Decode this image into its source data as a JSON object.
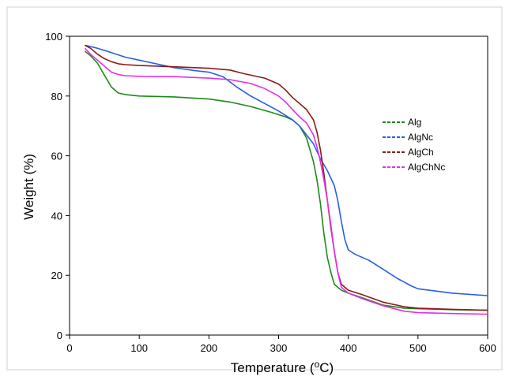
{
  "chart_data": {
    "type": "line",
    "title": "",
    "xlabel": "Temperature (",
    "xlabel_sup": "o",
    "xlabel_end": "C)",
    "ylabel": "Weight (%)",
    "xlim": [
      0,
      600
    ],
    "ylim": [
      0,
      100
    ],
    "xticks": [
      0,
      100,
      200,
      300,
      400,
      500,
      600
    ],
    "yticks": [
      0,
      20,
      40,
      60,
      80,
      100
    ],
    "grid": false,
    "legend_position": "right",
    "series": [
      {
        "name": "Alg",
        "color": "#1a8c1a",
        "x": [
          22,
          30,
          40,
          50,
          60,
          70,
          80,
          100,
          150,
          200,
          230,
          260,
          290,
          310,
          320,
          330,
          340,
          350,
          355,
          360,
          365,
          370,
          375,
          380,
          390,
          400,
          420,
          450,
          480,
          500,
          550,
          600
        ],
        "y": [
          95,
          93.5,
          91,
          87,
          83,
          81,
          80.5,
          80,
          79.7,
          79,
          78,
          76.5,
          74.5,
          73,
          72,
          70,
          66,
          58,
          52,
          44,
          34,
          26,
          21,
          17,
          15,
          14,
          12.5,
          10,
          9,
          8.8,
          8.5,
          8.3
        ]
      },
      {
        "name": "AlgNc",
        "color": "#2b5ce6",
        "x": [
          22,
          40,
          60,
          80,
          100,
          120,
          150,
          180,
          200,
          220,
          240,
          260,
          280,
          300,
          320,
          330,
          340,
          350,
          360,
          370,
          380,
          385,
          390,
          395,
          400,
          410,
          430,
          450,
          470,
          490,
          500,
          550,
          600
        ],
        "y": [
          97,
          96,
          94.5,
          93,
          92,
          91,
          89.5,
          88.5,
          88,
          86.5,
          83,
          80,
          77.5,
          75,
          72,
          70,
          67,
          64,
          59,
          55,
          50,
          45,
          38,
          32,
          28.5,
          27,
          25,
          22,
          19,
          16.5,
          15.5,
          14,
          13.2
        ]
      },
      {
        "name": "AlgCh",
        "color": "#8b1a1a",
        "x": [
          22,
          30,
          40,
          50,
          60,
          70,
          80,
          100,
          150,
          200,
          230,
          250,
          280,
          300,
          310,
          320,
          330,
          340,
          350,
          355,
          360,
          365,
          370,
          375,
          380,
          385,
          390,
          400,
          420,
          450,
          480,
          500,
          550,
          600
        ],
        "y": [
          97,
          96,
          94,
          92.5,
          91.5,
          90.8,
          90.5,
          90.2,
          89.8,
          89.3,
          88.7,
          87.5,
          86,
          84,
          82,
          79.5,
          77.5,
          75.5,
          72,
          68,
          62,
          54,
          45,
          36,
          28,
          21,
          17,
          15,
          13.5,
          11,
          9.5,
          9,
          8.6,
          8.3
        ]
      },
      {
        "name": "AlgChNc",
        "color": "#e62ee6",
        "x": [
          22,
          30,
          40,
          50,
          60,
          70,
          80,
          100,
          150,
          200,
          230,
          260,
          280,
          300,
          310,
          320,
          330,
          340,
          350,
          355,
          360,
          365,
          370,
          375,
          380,
          385,
          390,
          400,
          420,
          450,
          480,
          500,
          550,
          600
        ],
        "y": [
          96,
          94,
          92,
          90,
          88,
          87.2,
          86.8,
          86.6,
          86.5,
          86,
          85.5,
          84.2,
          82.5,
          80,
          78,
          75.5,
          73,
          71,
          67,
          63,
          58,
          52,
          45,
          37,
          28,
          21,
          16,
          14,
          12.2,
          9.8,
          8,
          7.5,
          7.2,
          7
        ]
      }
    ]
  }
}
